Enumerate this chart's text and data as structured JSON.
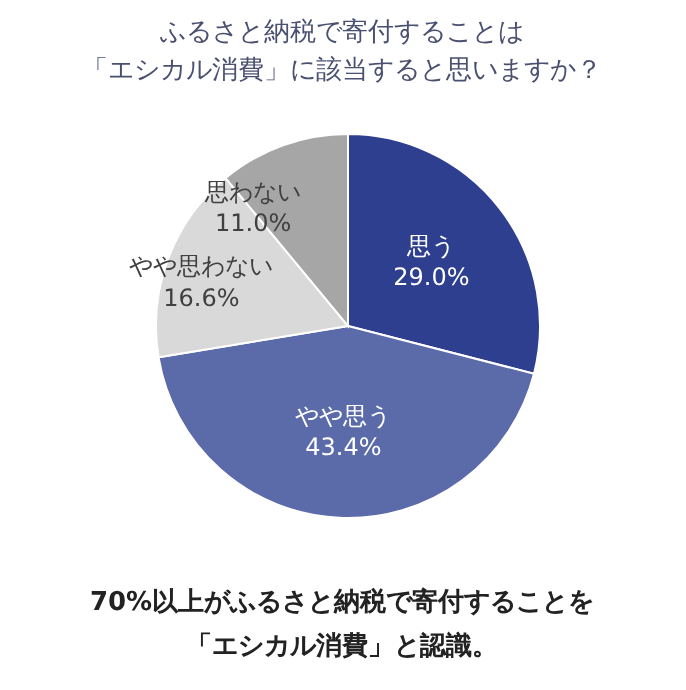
{
  "chart_data": {
    "type": "pie",
    "title": "ふるさと納税で寄付することは「エシカル消費」に該当すると思いますか？",
    "categories": [
      "思う",
      "やや思う",
      "やや思わない",
      "思わない"
    ],
    "values": [
      29.0,
      43.4,
      16.6,
      11.0
    ],
    "value_labels": [
      "29.0%",
      "43.4%",
      "16.6%",
      "11.0%"
    ],
    "colors": [
      "#2e3f8f",
      "#5b6aa8",
      "#d9d9d9",
      "#a6a6a6"
    ],
    "annotations": [
      "70%以上がふるさと納税で寄付することを「エシカル消費」と認識。"
    ]
  }
}
